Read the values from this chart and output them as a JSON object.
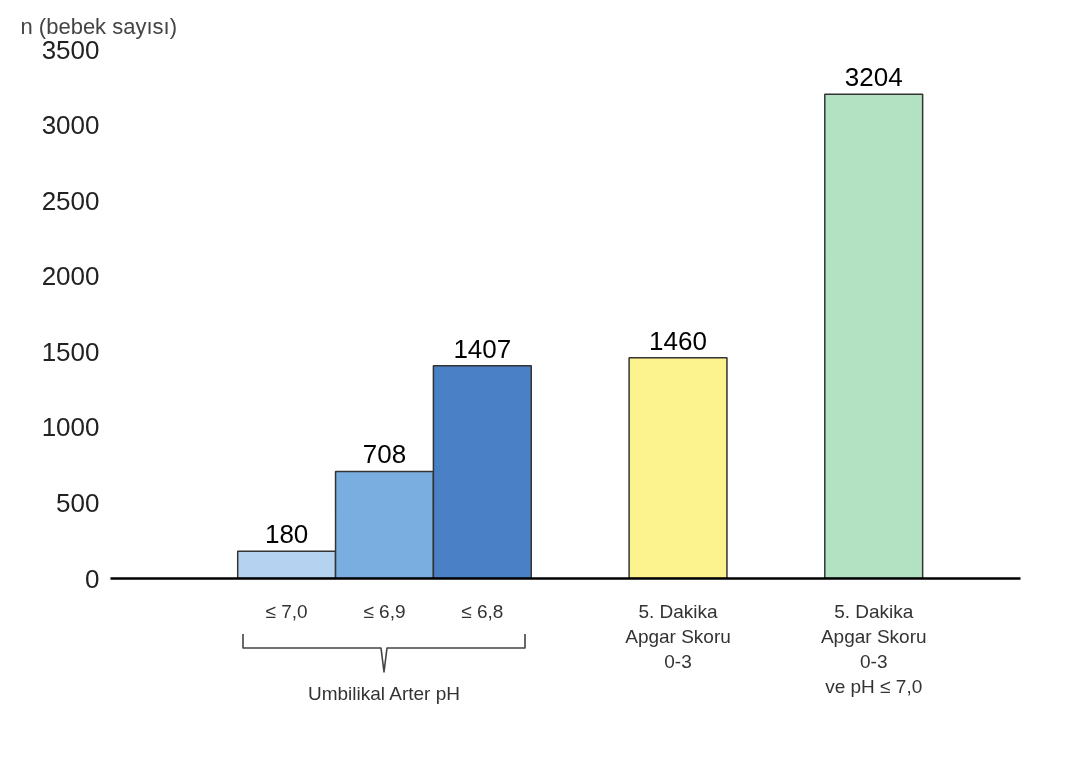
{
  "chart_data": {
    "type": "bar",
    "ylabel": "n (bebek sayısı)",
    "categories": [
      "≤ 7,0",
      "≤ 6,9",
      "≤ 6,8",
      null,
      "5. Dakika\nApgar Skoru\n0-3",
      null,
      "5. Dakika\nApgar Skoru\n0-3\nve pH ≤ 7,0"
    ],
    "values": [
      180,
      708,
      1407,
      null,
      1460,
      null,
      3204
    ],
    "colors": [
      "#b5d3f0",
      "#7aaee0",
      "#4a80c6",
      null,
      "#fcf38e",
      null,
      "#b2e2c2"
    ],
    "ylim": [
      0,
      3500
    ],
    "yticks": [
      0,
      500,
      1000,
      1500,
      2000,
      2500,
      3000,
      3500
    ],
    "data_labels": true,
    "grid": false,
    "legend": false,
    "annotations": [
      "Umbilikal Arter pH"
    ]
  }
}
